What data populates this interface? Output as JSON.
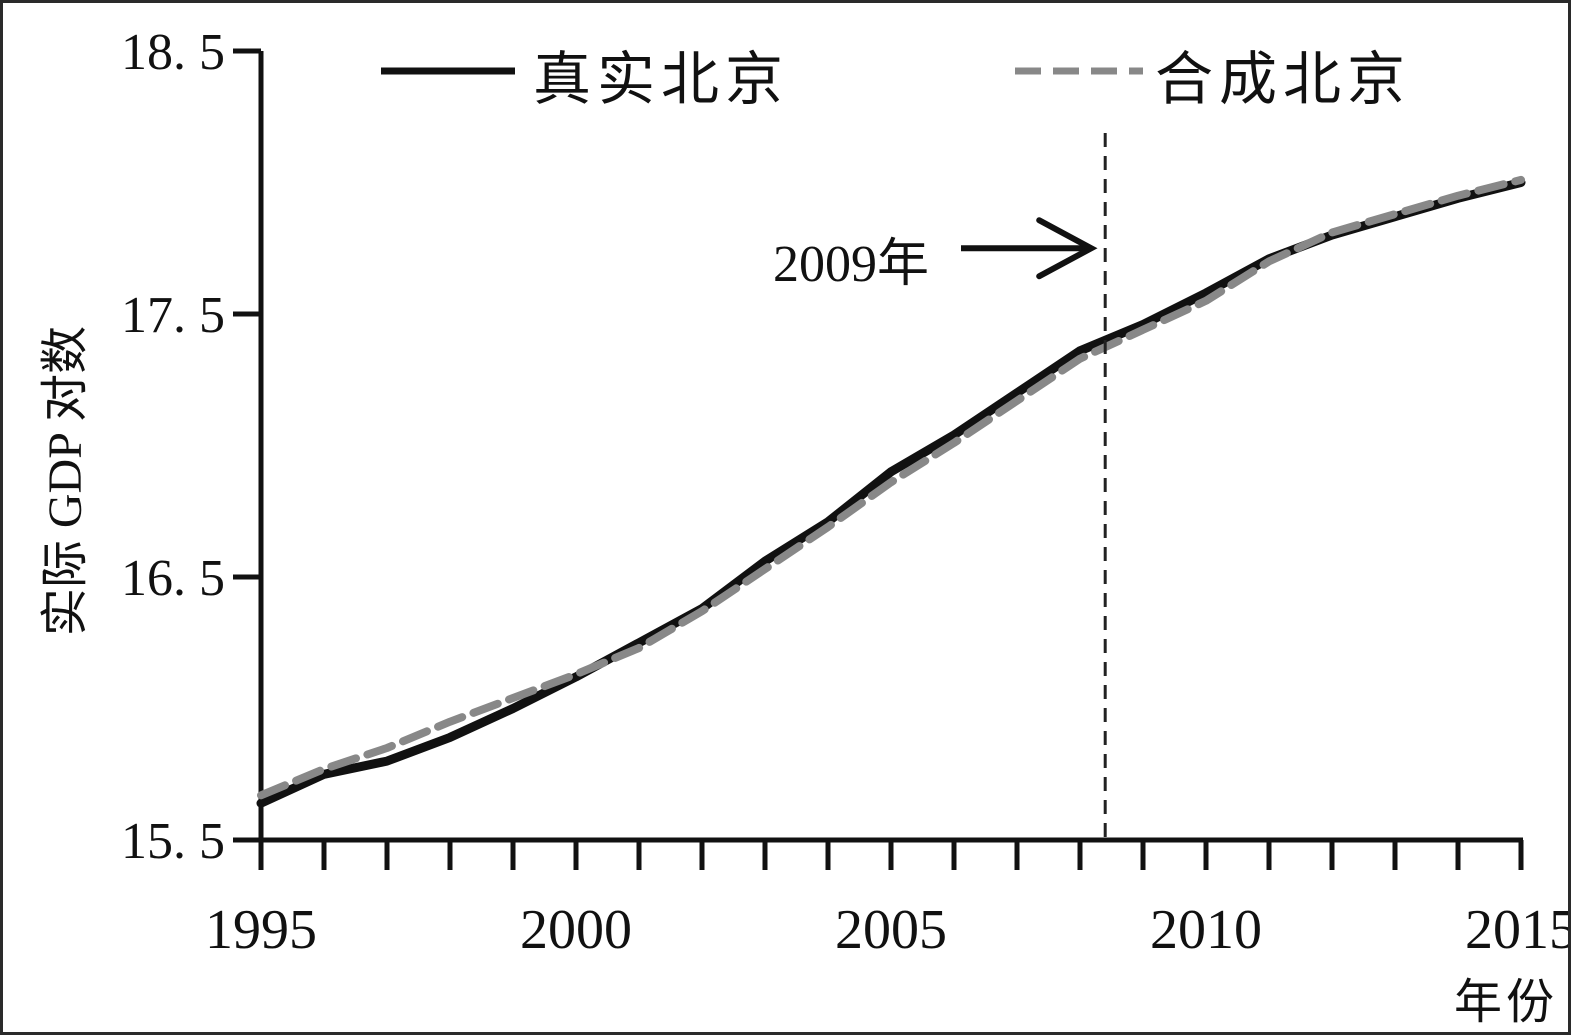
{
  "chart_data": {
    "type": "line",
    "ylabel": "实际 GDP 对数",
    "xlabel": "年份",
    "xlim": [
      1995,
      2015
    ],
    "ylim": [
      15.5,
      18.5
    ],
    "x_ticks": [
      1995,
      2000,
      2005,
      2010,
      2015
    ],
    "x_tick_labels": [
      "1995",
      "2000",
      "2005",
      "2010",
      "2015"
    ],
    "y_ticks": [
      15.5,
      16.5,
      17.5,
      18.5
    ],
    "y_tick_labels": [
      "15. 5",
      "16. 5",
      "17. 5",
      "18. 5"
    ],
    "x_minor_tick_step": 1,
    "grid": false,
    "legend_position": "top",
    "series": [
      {
        "name": "真实北京",
        "style": "solid",
        "color": "#111111",
        "x": [
          1995,
          1996,
          1997,
          1998,
          1999,
          2000,
          2001,
          2002,
          2003,
          2004,
          2005,
          2006,
          2007,
          2008,
          2009,
          2010,
          2011,
          2012,
          2013,
          2014,
          2015
        ],
        "y": [
          15.64,
          15.75,
          15.8,
          15.89,
          16.0,
          16.12,
          16.25,
          16.38,
          16.56,
          16.71,
          16.9,
          17.04,
          17.2,
          17.36,
          17.46,
          17.58,
          17.71,
          17.8,
          17.87,
          17.94,
          18.0
        ]
      },
      {
        "name": "合成北京",
        "style": "dashed",
        "color": "#888888",
        "x": [
          1995,
          1996,
          1997,
          1998,
          1999,
          2000,
          2001,
          2002,
          2003,
          2004,
          2005,
          2006,
          2007,
          2008,
          2009,
          2010,
          2011,
          2012,
          2013,
          2014,
          2015
        ],
        "y": [
          15.67,
          15.77,
          15.85,
          15.95,
          16.04,
          16.13,
          16.23,
          16.37,
          16.53,
          16.69,
          16.86,
          17.01,
          17.17,
          17.33,
          17.44,
          17.55,
          17.7,
          17.81,
          17.88,
          17.95,
          18.01
        ]
      }
    ],
    "reference_line": {
      "x": 2008.4,
      "style": "dashed",
      "color": "#222222"
    },
    "annotations": [
      {
        "text": "2009年",
        "arrow_to": {
          "x": 2008.4,
          "y": 17.75
        }
      }
    ]
  }
}
